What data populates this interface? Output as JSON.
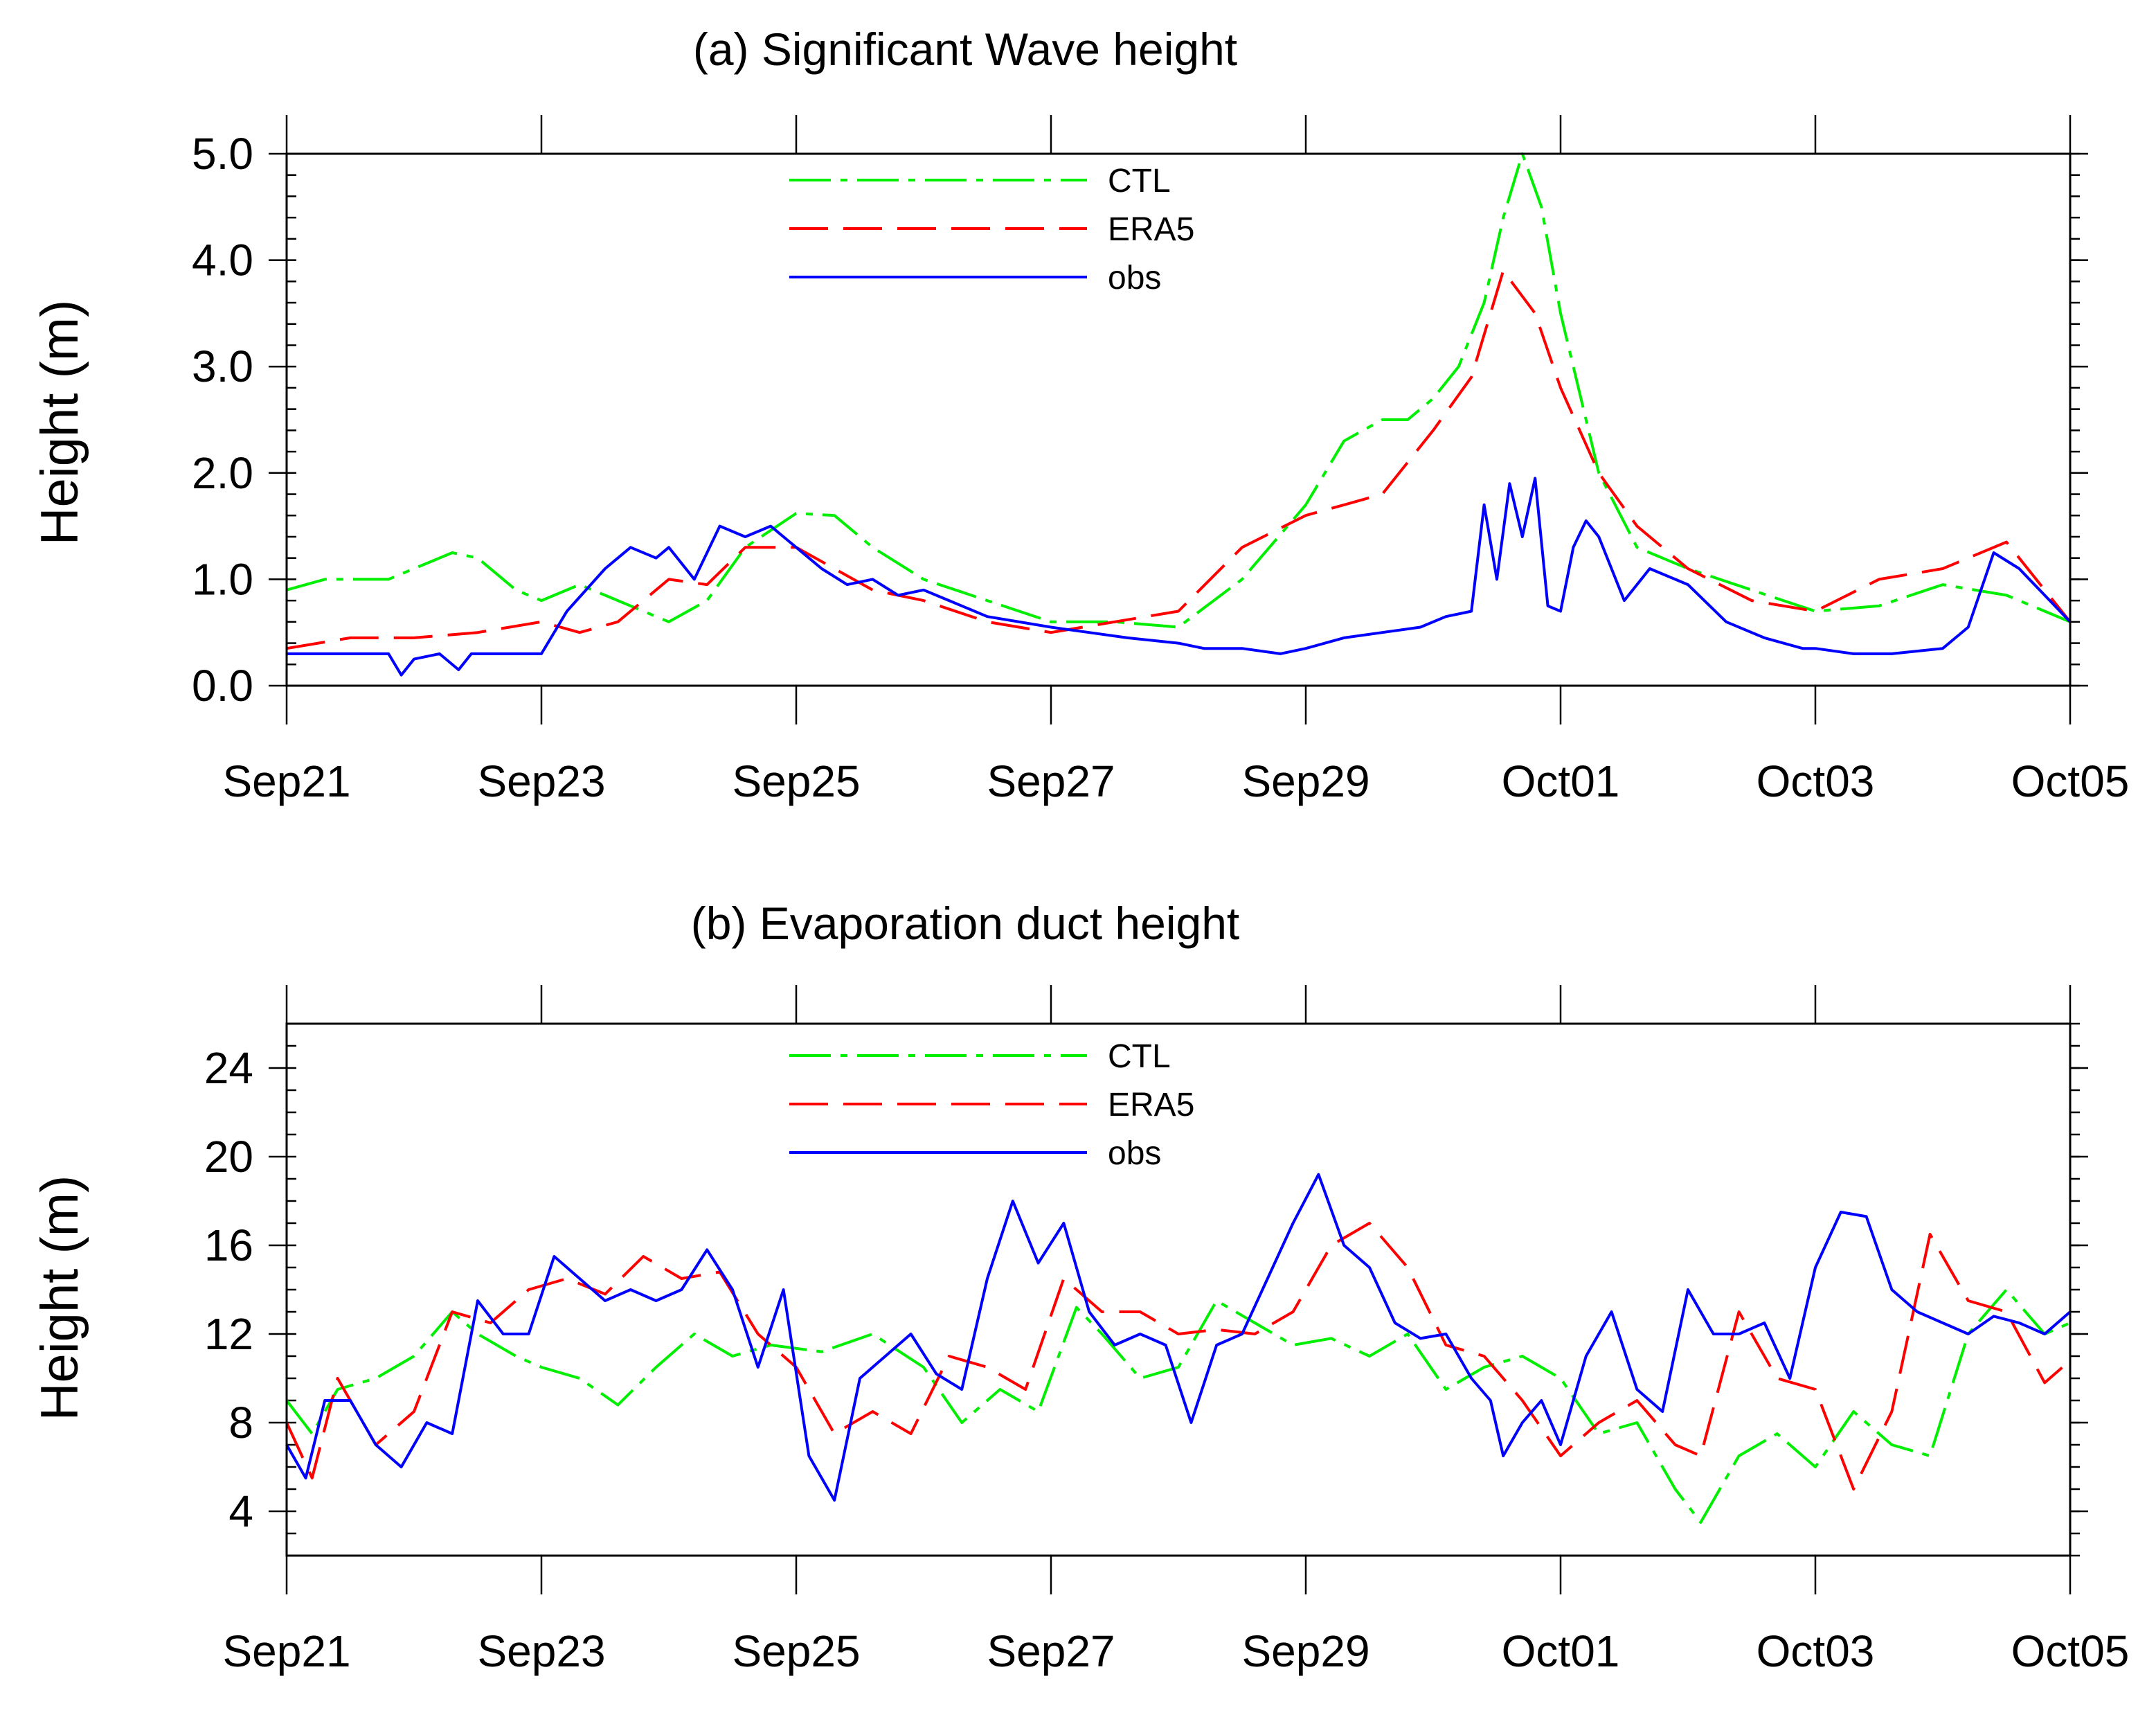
{
  "chart_data": [
    {
      "type": "line",
      "title": "(a) Significant Wave height",
      "xlabel": "",
      "ylabel": "Height (m)",
      "x_ticks": [
        "Sep21",
        "Sep23",
        "Sep25",
        "Sep27",
        "Sep29",
        "Oct01",
        "Oct03",
        "Oct05"
      ],
      "xlim": [
        0,
        14
      ],
      "ylim": [
        0,
        5
      ],
      "y_ticks": [
        "0.0",
        "1.0",
        "2.0",
        "3.0",
        "4.0",
        "5.0"
      ],
      "y_tick_values": [
        0,
        1,
        2,
        3,
        4,
        5
      ],
      "legend": [
        "CTL",
        "ERA5",
        "obs"
      ],
      "legend_position": "top-center",
      "series": [
        {
          "name": "CTL",
          "color": "#00ee00",
          "dash": "dashdot",
          "x": [
            0,
            0.3,
            0.6,
            0.8,
            1,
            1.3,
            1.5,
            1.8,
            2,
            2.3,
            2.6,
            3,
            3.3,
            3.6,
            4,
            4.3,
            4.6,
            5,
            5.5,
            6,
            6.5,
            7,
            7.5,
            8,
            8.3,
            8.6,
            8.8,
            9,
            9.2,
            9.4,
            9.55,
            9.7,
            9.85,
            10,
            10.3,
            10.6,
            11,
            11.5,
            12,
            12.5,
            13,
            13.5,
            14
          ],
          "y": [
            0.9,
            1.0,
            1.0,
            1.0,
            1.1,
            1.25,
            1.2,
            0.9,
            0.8,
            0.95,
            0.8,
            0.6,
            0.8,
            1.3,
            1.62,
            1.6,
            1.3,
            1.0,
            0.8,
            0.6,
            0.6,
            0.55,
            1.0,
            1.7,
            2.3,
            2.5,
            2.5,
            2.7,
            3.0,
            3.6,
            4.4,
            5.0,
            4.5,
            3.5,
            2.0,
            1.3,
            1.1,
            0.9,
            0.7,
            0.75,
            0.95,
            0.85,
            0.6
          ]
        },
        {
          "name": "ERA5",
          "color": "#ff0000",
          "dash": "dashed",
          "x": [
            0,
            0.5,
            1,
            1.5,
            2,
            2.3,
            2.6,
            3,
            3.3,
            3.6,
            4,
            4.3,
            4.6,
            5,
            5.5,
            6,
            6.5,
            7,
            7.5,
            8,
            8.3,
            8.6,
            9,
            9.3,
            9.55,
            9.8,
            10,
            10.3,
            10.6,
            11,
            11.5,
            12,
            12.5,
            13,
            13.5,
            14
          ],
          "y": [
            0.35,
            0.45,
            0.45,
            0.5,
            0.6,
            0.5,
            0.6,
            1.0,
            0.95,
            1.3,
            1.3,
            1.1,
            0.9,
            0.8,
            0.6,
            0.5,
            0.6,
            0.7,
            1.3,
            1.6,
            1.7,
            1.8,
            2.4,
            2.9,
            3.9,
            3.5,
            2.8,
            2.0,
            1.5,
            1.1,
            0.8,
            0.7,
            1.0,
            1.1,
            1.35,
            0.6
          ]
        },
        {
          "name": "obs",
          "color": "#0000ff",
          "dash": "solid",
          "x": [
            0,
            0.5,
            0.8,
            0.9,
            1,
            1.2,
            1.35,
            1.45,
            1.5,
            1.7,
            2,
            2.2,
            2.5,
            2.7,
            2.9,
            3,
            3.2,
            3.4,
            3.6,
            3.8,
            4,
            4.2,
            4.4,
            4.6,
            4.8,
            5,
            5.2,
            5.5,
            6,
            6.3,
            6.6,
            7,
            7.2,
            7.5,
            7.8,
            8,
            8.3,
            8.6,
            8.9,
            9.1,
            9.3,
            9.4,
            9.5,
            9.6,
            9.7,
            9.8,
            9.9,
            10,
            10.1,
            10.2,
            10.3,
            10.5,
            10.7,
            10.9,
            11,
            11.3,
            11.6,
            11.9,
            12,
            12.3,
            12.6,
            13,
            13.2,
            13.4,
            13.6,
            13.8,
            14
          ],
          "y": [
            0.3,
            0.3,
            0.3,
            0.1,
            0.25,
            0.3,
            0.15,
            0.3,
            0.3,
            0.3,
            0.3,
            0.7,
            1.1,
            1.3,
            1.2,
            1.3,
            1.0,
            1.5,
            1.4,
            1.5,
            1.3,
            1.1,
            0.95,
            1.0,
            0.85,
            0.9,
            0.8,
            0.65,
            0.55,
            0.5,
            0.45,
            0.4,
            0.35,
            0.35,
            0.3,
            0.35,
            0.45,
            0.5,
            0.55,
            0.65,
            0.7,
            1.7,
            1.0,
            1.9,
            1.4,
            1.95,
            0.75,
            0.7,
            1.3,
            1.55,
            1.4,
            0.8,
            1.1,
            1.0,
            0.95,
            0.6,
            0.45,
            0.35,
            0.35,
            0.3,
            0.3,
            0.35,
            0.55,
            1.25,
            1.1,
            0.85,
            0.6
          ]
        }
      ]
    },
    {
      "type": "line",
      "title": "(b) Evaporation duct height",
      "xlabel": "",
      "ylabel": "Height (m)",
      "x_ticks": [
        "Sep21",
        "Sep23",
        "Sep25",
        "Sep27",
        "Sep29",
        "Oct01",
        "Oct03",
        "Oct05"
      ],
      "xlim": [
        0,
        14
      ],
      "ylim": [
        2,
        26
      ],
      "y_ticks": [
        "4",
        "8",
        "12",
        "16",
        "20",
        "24"
      ],
      "y_tick_values": [
        4,
        8,
        12,
        16,
        20,
        24
      ],
      "legend": [
        "CTL",
        "ERA5",
        "obs"
      ],
      "legend_position": "top-center",
      "series": [
        {
          "name": "CTL",
          "color": "#00ee00",
          "dash": "dashdot",
          "x": [
            0,
            0.2,
            0.4,
            0.7,
            1,
            1.3,
            1.5,
            1.8,
            2,
            2.3,
            2.6,
            2.9,
            3.2,
            3.5,
            3.8,
            4.2,
            4.6,
            5,
            5.3,
            5.6,
            5.9,
            6.2,
            6.4,
            6.7,
            7,
            7.3,
            7.6,
            7.9,
            8.2,
            8.5,
            8.8,
            9.1,
            9.4,
            9.7,
            10,
            10.3,
            10.6,
            10.9,
            11.1,
            11.4,
            11.7,
            12,
            12.3,
            12.6,
            12.9,
            13.2,
            13.5,
            13.8,
            14
          ],
          "y": [
            9,
            7.5,
            9.5,
            10,
            11,
            13,
            12,
            11,
            10.5,
            10,
            8.8,
            10.5,
            12,
            11,
            11.5,
            11.2,
            12,
            10.5,
            8,
            9.5,
            8.5,
            13.2,
            12,
            10,
            10.5,
            13.5,
            12.5,
            11.5,
            11.8,
            11,
            12,
            9.5,
            10.5,
            11,
            10,
            7.5,
            8,
            5,
            3.5,
            6.5,
            7.5,
            6,
            8.5,
            7,
            6.5,
            12,
            14,
            12,
            12.5
          ]
        },
        {
          "name": "ERA5",
          "color": "#ff0000",
          "dash": "dashed",
          "x": [
            0,
            0.2,
            0.4,
            0.7,
            1,
            1.3,
            1.6,
            1.9,
            2.2,
            2.5,
            2.8,
            3.1,
            3.4,
            3.7,
            4,
            4.3,
            4.6,
            4.9,
            5.2,
            5.5,
            5.8,
            6.1,
            6.4,
            6.7,
            7,
            7.3,
            7.6,
            7.9,
            8.2,
            8.5,
            8.8,
            9.1,
            9.4,
            9.7,
            10,
            10.3,
            10.6,
            10.9,
            11.1,
            11.4,
            11.7,
            12,
            12.3,
            12.6,
            12.9,
            13.2,
            13.5,
            13.8,
            14
          ],
          "y": [
            8,
            5.5,
            10,
            7,
            8.5,
            13,
            12.5,
            14,
            14.5,
            13.8,
            15.5,
            14.5,
            14.8,
            12,
            10.5,
            7.5,
            8.5,
            7.5,
            11,
            10.5,
            9.5,
            14.5,
            13,
            13,
            12,
            12.2,
            12,
            13,
            16,
            17,
            15,
            11.5,
            11,
            9,
            6.5,
            8,
            9,
            7,
            6.5,
            13,
            10,
            9.5,
            5,
            8.5,
            16.5,
            13.5,
            13,
            9.8,
            10.8
          ]
        },
        {
          "name": "obs",
          "color": "#0000ff",
          "dash": "solid",
          "x": [
            0,
            0.15,
            0.3,
            0.5,
            0.7,
            0.9,
            1.1,
            1.3,
            1.5,
            1.7,
            1.9,
            2.1,
            2.3,
            2.5,
            2.7,
            2.9,
            3.1,
            3.3,
            3.5,
            3.7,
            3.9,
            4.1,
            4.3,
            4.5,
            4.7,
            4.9,
            5.1,
            5.3,
            5.5,
            5.7,
            5.9,
            6.1,
            6.3,
            6.5,
            6.7,
            6.9,
            7.1,
            7.3,
            7.5,
            7.7,
            7.9,
            8.1,
            8.3,
            8.5,
            8.7,
            8.9,
            9.1,
            9.3,
            9.45,
            9.55,
            9.7,
            9.85,
            10,
            10.2,
            10.4,
            10.6,
            10.8,
            11,
            11.2,
            11.4,
            11.6,
            11.8,
            12,
            12.2,
            12.4,
            12.6,
            12.8,
            13,
            13.2,
            13.4,
            13.6,
            13.8,
            14
          ],
          "y": [
            7,
            5.5,
            9,
            9,
            7,
            6,
            8,
            7.5,
            13.5,
            12,
            12,
            15.5,
            14.5,
            13.5,
            14,
            13.5,
            14,
            15.8,
            14,
            10.5,
            14,
            6.5,
            4.5,
            10,
            11,
            12,
            10.2,
            9.5,
            14.5,
            18,
            15.2,
            17,
            13,
            11.5,
            12,
            11.5,
            8,
            11.5,
            12,
            14.5,
            17,
            19.2,
            16,
            15,
            12.5,
            11.8,
            12,
            10,
            9,
            6.5,
            8,
            9,
            7,
            11,
            13,
            9.5,
            8.5,
            14,
            12,
            12,
            12.5,
            10,
            15,
            17.5,
            17.3,
            14,
            13,
            12.5,
            12,
            12.8,
            12.5,
            12,
            13
          ]
        }
      ]
    }
  ]
}
